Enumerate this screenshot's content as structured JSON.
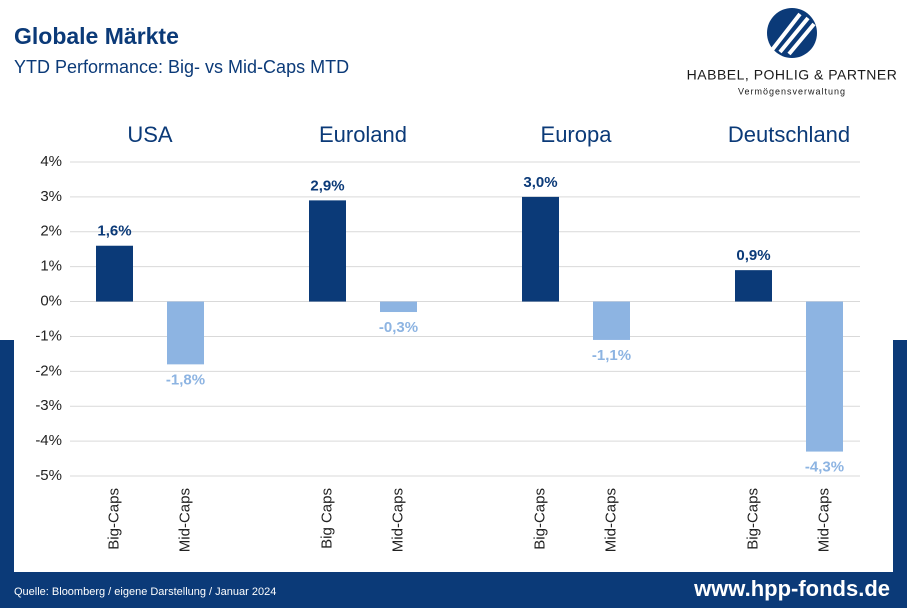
{
  "header": {
    "title": "Globale Märkte",
    "subtitle": "YTD Performance: Big- vs Mid-Caps MTD",
    "logo_name": "HABBEL, POHLIG & PARTNER",
    "logo_tagline": "Vermögensverwaltung"
  },
  "footer": {
    "source": "Quelle: Bloomberg / eigene Darstellung / Januar 2024",
    "website": "www.hpp-fonds.de"
  },
  "chart_data": {
    "type": "bar",
    "groups": [
      "USA",
      "Euroland",
      "Europa",
      "Deutschland"
    ],
    "categories": [
      "Big-Caps",
      "Mid-Caps",
      "Big Caps",
      "Mid-Caps",
      "Big-Caps",
      "Mid-Caps",
      "Big-Caps",
      "Mid-Caps"
    ],
    "values": [
      1.6,
      -1.8,
      2.9,
      -0.3,
      3.0,
      -1.1,
      0.9,
      -4.3
    ],
    "value_labels": [
      "1,6%",
      "-1,8%",
      "2,9%",
      "-0,3%",
      "3,0%",
      "-1,1%",
      "0,9%",
      "-4,3%"
    ],
    "colors": [
      "#0b3a78",
      "#8db4e2",
      "#0b3a78",
      "#8db4e2",
      "#0b3a78",
      "#8db4e2",
      "#0b3a78",
      "#8db4e2"
    ],
    "ylim": [
      -5,
      4
    ],
    "yticks": [
      {
        "value": 4,
        "label": "4%"
      },
      {
        "value": 3,
        "label": "3%"
      },
      {
        "value": 2,
        "label": "2%"
      },
      {
        "value": 1,
        "label": "1%"
      },
      {
        "value": 0,
        "label": "0%"
      },
      {
        "value": -1,
        "label": "-1%"
      },
      {
        "value": -2,
        "label": "-2%"
      },
      {
        "value": -3,
        "label": "-3%"
      },
      {
        "value": -4,
        "label": "-4%"
      },
      {
        "value": -5,
        "label": "-5%"
      }
    ],
    "grid": true
  }
}
